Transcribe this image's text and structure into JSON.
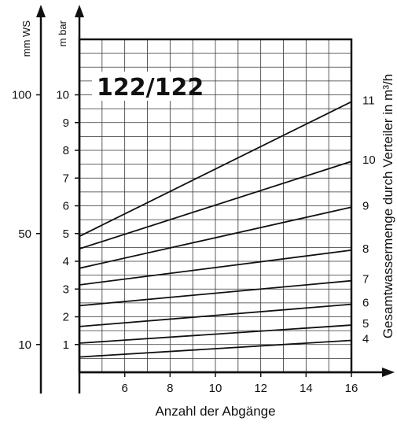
{
  "chart_data": {
    "type": "line",
    "badge": "122/122",
    "xlabel": "Anzahl der Abgänge",
    "ylabel_left_outer": "mm WS",
    "ylabel_left_inner": "m bar",
    "ylabel_right": "Gesamtwassermenge durch Verteiler in m³/h",
    "xlim": [
      4,
      16
    ],
    "ylim": [
      0,
      12
    ],
    "x_ticks": [
      6,
      8,
      10,
      12,
      14,
      16
    ],
    "y_ticks": [
      1,
      2,
      3,
      4,
      5,
      6,
      7,
      8,
      9,
      10
    ],
    "mmws_ticks": [
      {
        "label": "10",
        "mbar": 1
      },
      {
        "label": "50",
        "mbar": 5
      },
      {
        "label": "100",
        "mbar": 10
      }
    ],
    "grid": true,
    "series": [
      {
        "name": "4",
        "x": [
          4,
          16
        ],
        "y": [
          0.55,
          1.15
        ]
      },
      {
        "name": "5",
        "x": [
          4,
          16
        ],
        "y": [
          1.05,
          1.7
        ]
      },
      {
        "name": "6",
        "x": [
          4,
          16
        ],
        "y": [
          1.65,
          2.45
        ]
      },
      {
        "name": "7",
        "x": [
          4,
          16
        ],
        "y": [
          2.4,
          3.3
        ]
      },
      {
        "name": "8",
        "x": [
          4,
          16
        ],
        "y": [
          3.15,
          4.4
        ]
      },
      {
        "name": "9",
        "x": [
          4,
          16
        ],
        "y": [
          3.75,
          5.95
        ]
      },
      {
        "name": "10",
        "x": [
          4,
          16
        ],
        "y": [
          4.45,
          7.6
        ]
      },
      {
        "name": "11",
        "x": [
          4,
          16
        ],
        "y": [
          4.9,
          9.75
        ]
      }
    ]
  }
}
